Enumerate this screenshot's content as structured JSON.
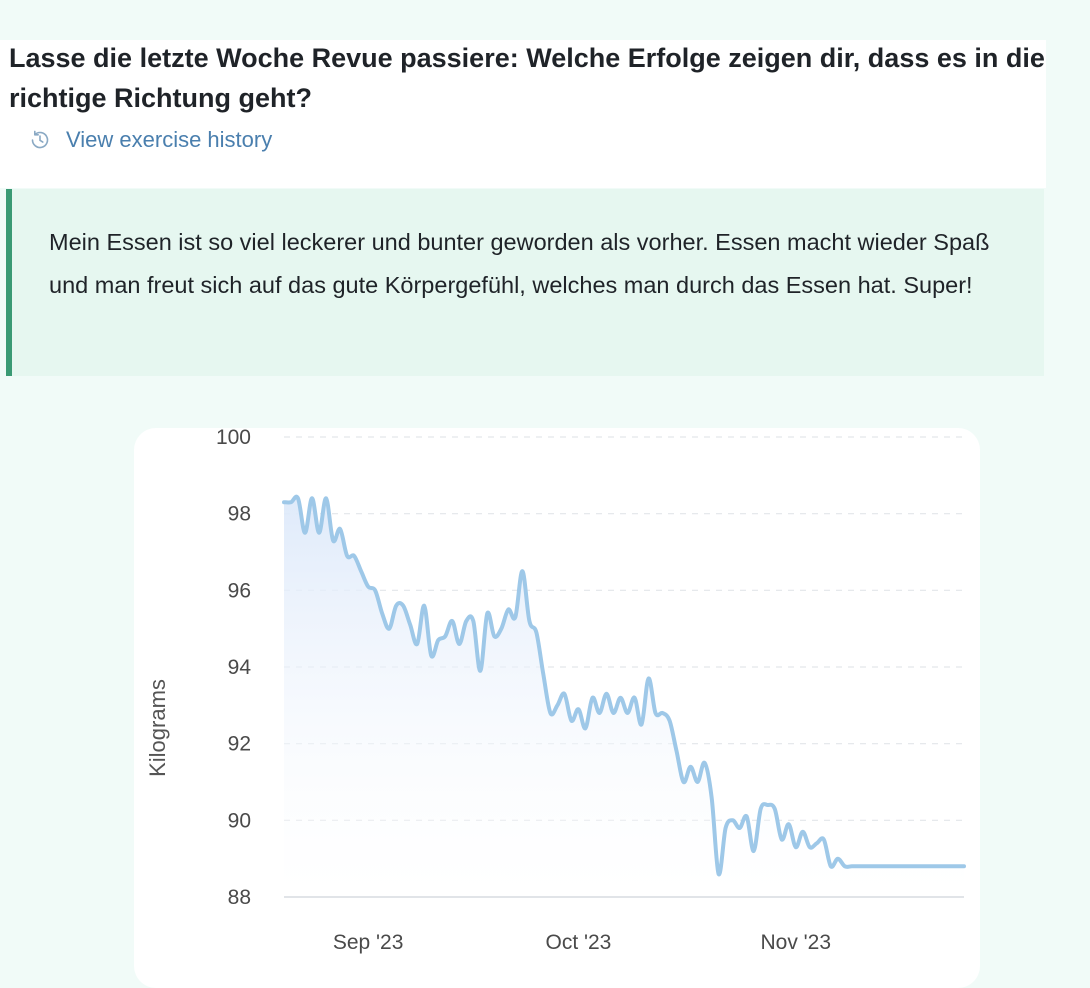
{
  "question": {
    "title": "Lasse die letzte Woche Revue passiere: Welche Erfolge zeigen dir, dass es in die richtige Richtung geht?",
    "history_link": "View exercise history",
    "history_icon": "history-clock-icon"
  },
  "answer": {
    "text": "Mein Essen ist so viel leckerer und bunter geworden als vorher. Essen macht wieder Spaß und man freut sich auf das gute Körpergefühl, welches man durch das Essen hat. Super!",
    "accent_color": "#3a9a74",
    "background_color": "#e6f7f0"
  },
  "chart_data": {
    "type": "area",
    "title": "",
    "xlabel": "",
    "ylabel": "Kilograms",
    "ylim": [
      88,
      100
    ],
    "yticks": [
      100,
      98,
      96,
      94,
      92,
      90,
      88
    ],
    "xlim": [
      "2023-08-20",
      "2023-11-25"
    ],
    "xticks": [
      {
        "label": "Sep '23",
        "date": "2023-09-01"
      },
      {
        "label": "Oct '23",
        "date": "2023-10-01"
      },
      {
        "label": "Nov '23",
        "date": "2023-11-01"
      }
    ],
    "grid": "horizontal-dashed",
    "line_color": "#9ec8e8",
    "fill_color": "#e9f2fc",
    "series": [
      {
        "x": [
          "2023-08-20",
          "2023-08-21",
          "2023-08-22",
          "2023-08-23",
          "2023-08-24",
          "2023-08-25",
          "2023-08-26",
          "2023-08-27",
          "2023-08-28",
          "2023-08-29",
          "2023-08-30",
          "2023-08-31",
          "2023-09-01",
          "2023-09-02",
          "2023-09-03",
          "2023-09-04",
          "2023-09-05",
          "2023-09-06",
          "2023-09-07",
          "2023-09-08",
          "2023-09-09",
          "2023-09-10",
          "2023-09-11",
          "2023-09-12",
          "2023-09-13",
          "2023-09-14",
          "2023-09-15",
          "2023-09-16",
          "2023-09-17",
          "2023-09-18",
          "2023-09-19",
          "2023-09-20",
          "2023-09-21",
          "2023-09-22",
          "2023-09-23",
          "2023-09-24",
          "2023-09-25",
          "2023-09-26",
          "2023-09-27",
          "2023-09-28",
          "2023-09-29",
          "2023-09-30",
          "2023-10-01",
          "2023-10-02",
          "2023-10-03",
          "2023-10-04",
          "2023-10-05",
          "2023-10-06",
          "2023-10-07",
          "2023-10-08",
          "2023-10-09",
          "2023-10-10",
          "2023-10-11",
          "2023-10-12",
          "2023-10-13",
          "2023-10-14",
          "2023-10-15",
          "2023-10-16",
          "2023-10-17",
          "2023-10-18",
          "2023-10-19",
          "2023-10-20",
          "2023-10-21",
          "2023-10-22",
          "2023-10-23",
          "2023-10-24",
          "2023-10-25",
          "2023-10-26",
          "2023-10-27",
          "2023-10-28",
          "2023-10-29",
          "2023-10-30",
          "2023-10-31",
          "2023-11-01",
          "2023-11-02",
          "2023-11-03",
          "2023-11-04",
          "2023-11-05",
          "2023-11-06",
          "2023-11-07",
          "2023-11-08",
          "2023-11-09",
          "2023-11-10",
          "2023-11-11",
          "2023-11-12",
          "2023-11-13",
          "2023-11-14",
          "2023-11-15",
          "2023-11-16",
          "2023-11-17",
          "2023-11-18",
          "2023-11-19",
          "2023-11-20",
          "2023-11-21",
          "2023-11-22",
          "2023-11-23",
          "2023-11-24",
          "2023-11-25"
        ],
        "y": [
          98.3,
          98.3,
          98.4,
          97.5,
          98.4,
          97.5,
          98.4,
          97.3,
          97.6,
          96.9,
          96.9,
          96.5,
          96.1,
          96.0,
          95.4,
          95.0,
          95.6,
          95.6,
          95.1,
          94.6,
          95.6,
          94.3,
          94.7,
          94.8,
          95.2,
          94.6,
          95.2,
          95.2,
          93.9,
          95.4,
          94.8,
          95.0,
          95.5,
          95.3,
          96.5,
          95.2,
          94.9,
          93.8,
          92.8,
          93.0,
          93.3,
          92.6,
          92.9,
          92.4,
          93.2,
          92.8,
          93.3,
          92.8,
          93.2,
          92.8,
          93.2,
          92.5,
          93.7,
          92.8,
          92.8,
          92.6,
          91.8,
          91.0,
          91.4,
          91.0,
          91.5,
          90.6,
          88.6,
          89.8,
          90.0,
          89.8,
          90.1,
          89.2,
          90.3,
          90.4,
          90.3,
          89.5,
          89.9,
          89.3,
          89.7,
          89.3,
          89.4,
          89.5,
          88.8,
          89.0,
          88.8,
          88.8,
          88.8,
          88.8,
          88.8,
          88.8,
          88.8,
          88.8,
          88.8,
          88.8,
          88.8,
          88.8,
          88.8,
          88.8,
          88.8,
          88.8,
          88.8,
          88.8
        ]
      }
    ]
  }
}
